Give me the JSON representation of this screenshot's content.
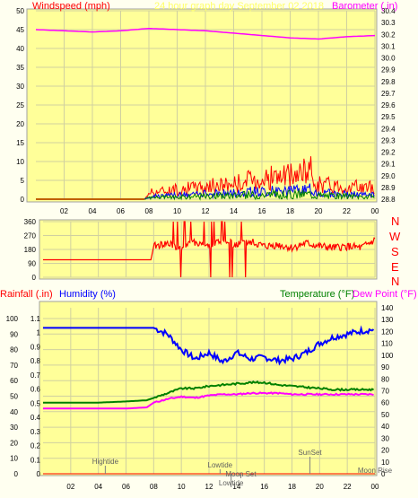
{
  "graph_title": "24 hour graph day   September 02 2018",
  "colors": {
    "frame_bg": "#ffffe0",
    "plot_bg": "#ffff99",
    "grid": "#d0d0a0",
    "title": "#ffff66",
    "wind": "#ff0000",
    "gust_blue": "#0000ff",
    "gust_green": "#008000",
    "baro": "#ff00ff",
    "humidity": "#0000ff",
    "temperature": "#008000",
    "dewpoint": "#ff00ff",
    "rain_label": "#ff0000",
    "marker": "#808080"
  },
  "x_ticks": [
    "02",
    "04",
    "06",
    "08",
    "10",
    "12",
    "14",
    "16",
    "18",
    "20",
    "22",
    "00"
  ],
  "chart_data": [
    {
      "type": "line",
      "title": "Windspeed and Barometer",
      "ylabel": "Windspeed (mph)",
      "y2label": "Barometer (.in)",
      "ylim": [
        0,
        50
      ],
      "y2lim": [
        28.8,
        30.4
      ],
      "yticks": [
        0,
        5,
        10,
        15,
        20,
        25,
        30,
        35,
        40,
        45,
        50
      ],
      "y2ticks": [
        28.8,
        28.9,
        29.0,
        29.1,
        29.2,
        29.3,
        29.4,
        29.5,
        29.6,
        29.7,
        29.8,
        29.9,
        30.0,
        30.1,
        30.2,
        30.3,
        30.4
      ],
      "hours": [
        0,
        2,
        4,
        6,
        7.7,
        8,
        10,
        12,
        14,
        16,
        18,
        19.5,
        20,
        22,
        24
      ],
      "wind_gust_mph": [
        0,
        0,
        0,
        0,
        0,
        2.5,
        3.5,
        4.5,
        5.5,
        7.5,
        8,
        10,
        5.5,
        4.5,
        4
      ],
      "wind_avg_mph": [
        0,
        0,
        0,
        0,
        0,
        1,
        1.5,
        2,
        2.5,
        3,
        3,
        3.5,
        2.5,
        2,
        1.5
      ],
      "baro_hours": [
        0,
        2,
        4,
        6,
        8,
        10,
        12,
        14,
        16,
        18,
        20,
        22,
        24
      ],
      "baro_in": [
        30.24,
        30.23,
        30.22,
        30.23,
        30.25,
        30.24,
        30.23,
        30.21,
        30.19,
        30.17,
        30.16,
        30.18,
        30.19
      ]
    },
    {
      "type": "line",
      "title": "Wind Direction",
      "ylim": [
        0,
        360
      ],
      "yticks": [
        0,
        90,
        180,
        270,
        360
      ],
      "direction_labels": [
        "N",
        "W",
        "S",
        "E",
        "N"
      ],
      "hours": [
        0,
        2,
        4,
        6,
        7.8,
        8,
        9,
        10,
        11,
        12,
        13,
        14,
        15,
        16,
        17,
        18,
        19,
        20,
        21,
        22,
        23,
        24
      ],
      "direction_deg": [
        113,
        113,
        113,
        113,
        113,
        200,
        220,
        190,
        230,
        200,
        240,
        210,
        230,
        200,
        210,
        190,
        220,
        200,
        190,
        200,
        190,
        240
      ]
    },
    {
      "type": "line",
      "title": "Rainfall, Humidity, Temperature, Dew Point",
      "ylabels": [
        "Rainfall (.in)",
        "Humidity (%)",
        "Temperature (°F)",
        "Dew Point (°F)"
      ],
      "rain_ticks": [
        0,
        0.1,
        0.2,
        0.3,
        0.4,
        0.5,
        0.6,
        0.7,
        0.8,
        0.9,
        1,
        1.1
      ],
      "humidity_ticks": [
        0,
        10,
        20,
        30,
        40,
        50,
        60,
        70,
        80,
        90,
        100
      ],
      "temp_ticks": [
        0,
        10,
        20,
        30,
        40,
        50,
        60,
        70,
        80,
        90,
        100,
        110,
        120,
        130,
        140
      ],
      "hours": [
        0,
        2,
        4,
        6,
        7.5,
        8,
        9,
        10,
        11,
        12,
        13,
        14,
        15,
        16,
        17,
        18,
        19,
        20,
        21,
        22,
        23,
        24
      ],
      "humidity_pct": [
        94,
        94,
        94,
        94,
        94,
        94,
        90,
        80,
        74,
        78,
        72,
        78,
        74,
        75,
        73,
        74,
        78,
        84,
        88,
        90,
        92,
        93
      ],
      "temperature_f": [
        60,
        60,
        60,
        61,
        62,
        64,
        68,
        72,
        72,
        74,
        75,
        76,
        77,
        77,
        75,
        74,
        73,
        72,
        71,
        71,
        71,
        71
      ],
      "dewpoint_f": [
        55,
        55,
        55,
        55,
        56,
        60,
        63,
        65,
        64,
        66,
        67,
        67,
        68,
        68,
        68,
        67,
        67,
        67,
        67,
        67,
        67,
        67
      ],
      "rainfall_in": [
        0,
        0,
        0,
        0,
        0,
        0,
        0,
        0,
        0,
        0,
        0,
        0,
        0,
        0,
        0,
        0,
        0,
        0,
        0,
        0,
        0,
        0
      ],
      "markers": [
        {
          "label": "Hightide",
          "hour": 4.5
        },
        {
          "label": "Lowtide",
          "hour": 12.8
        },
        {
          "label": "Moon Set",
          "hour": 14.3
        },
        {
          "label": "Lowtide",
          "hour": 13.6
        },
        {
          "label": "SunSet",
          "hour": 19.3
        },
        {
          "label": "Moon Rise",
          "hour": 24
        }
      ]
    }
  ]
}
